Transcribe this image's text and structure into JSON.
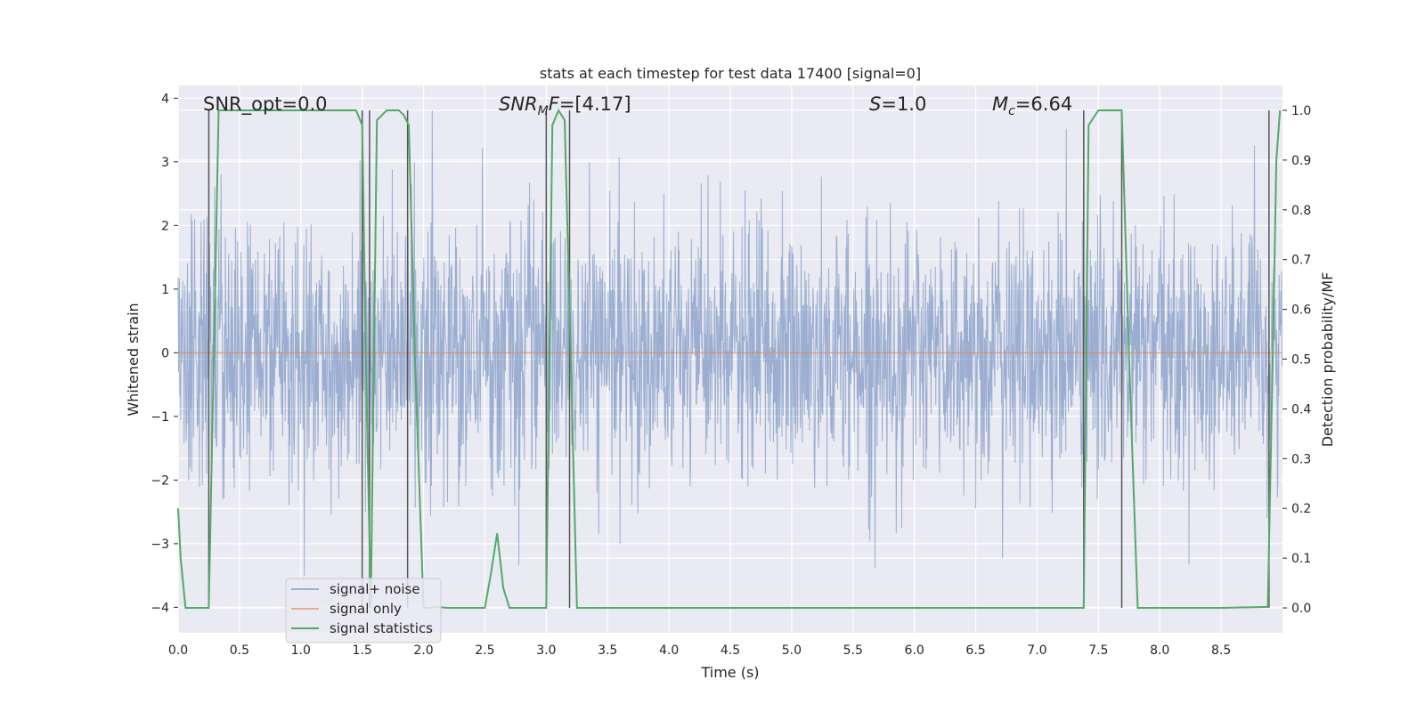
{
  "chart_data": {
    "type": "line",
    "title": "stats at each timestep for test data 17400 [signal=0]",
    "xlabel": "Time (s)",
    "ylabel": "Whitened strain",
    "y2label": "Detection probability/MF",
    "xlim": [
      0.0,
      9.0
    ],
    "ylim": [
      -4.4,
      4.2
    ],
    "y2lim": [
      -0.05,
      1.05
    ],
    "xticks": [
      "0.0",
      "0.5",
      "1.0",
      "1.5",
      "2.0",
      "2.5",
      "3.0",
      "3.5",
      "4.0",
      "4.5",
      "5.0",
      "5.5",
      "6.0",
      "6.5",
      "7.0",
      "7.5",
      "8.0",
      "8.5"
    ],
    "yticks": [
      "4",
      "3",
      "2",
      "1",
      "0",
      "−1",
      "−2",
      "−3",
      "−4"
    ],
    "y2ticks": [
      "1.0",
      "0.9",
      "0.8",
      "0.7",
      "0.6",
      "0.5",
      "0.4",
      "0.3",
      "0.2",
      "0.1",
      "0.0"
    ],
    "grid": true,
    "legend_position": "lower-left",
    "annotations": {
      "snr_opt": "SNR_opt=0.0",
      "snr_mf": "=[4.17]",
      "snr_mf_label": "SNR",
      "snr_mf_sub": "M",
      "snr_mf_f": "F",
      "s_label": "S",
      "s_value": "=1.0",
      "mc_label": "M",
      "mc_sub": "c",
      "mc_value": "=6.64"
    },
    "series": [
      {
        "name": "signal+ noise",
        "color": "#4c72b0",
        "description_kind": "noise",
        "amplitude_sigma": 1.0
      },
      {
        "name": "signal only",
        "color": "#dd8452",
        "values_constant": 0.0
      },
      {
        "name": "signal statistics",
        "color": "#55a868",
        "axis": "right",
        "x": [
          0.0,
          0.02,
          0.06,
          0.15,
          0.25,
          0.29,
          0.33,
          0.4,
          1.0,
          1.45,
          1.5,
          1.53,
          1.57,
          1.62,
          1.7,
          1.8,
          1.84,
          1.88,
          1.93,
          2.0,
          2.05,
          2.1,
          2.2,
          2.5,
          2.55,
          2.6,
          2.65,
          2.7,
          2.75,
          3.0,
          3.05,
          3.1,
          3.15,
          3.2,
          3.25,
          3.3,
          4.0,
          5.0,
          6.0,
          7.0,
          7.38,
          7.42,
          7.5,
          7.6,
          7.69,
          7.75,
          7.82,
          7.9,
          8.0,
          8.5,
          8.88,
          8.92,
          8.95,
          8.98
        ],
        "y": [
          0.2,
          0.1,
          0.0,
          0.0,
          0.0,
          0.5,
          1.0,
          1.0,
          1.0,
          1.0,
          0.97,
          0.5,
          0.0,
          0.98,
          1.0,
          1.0,
          0.99,
          0.97,
          0.5,
          0.0,
          0.0,
          0.002,
          0.0,
          0.0,
          0.07,
          0.15,
          0.04,
          0.0,
          0.0,
          0.0,
          0.97,
          1.0,
          0.98,
          0.5,
          0.0,
          0.0,
          0.0,
          0.0,
          0.0,
          0.0,
          0.0,
          0.97,
          1.0,
          1.0,
          1.0,
          0.5,
          0.0,
          0.0,
          0.0,
          0.0,
          0.002,
          0.5,
          0.9,
          1.0
        ]
      }
    ],
    "vertical_markers": [
      0.25,
      1.5,
      1.56,
      1.87,
      3.0,
      3.19,
      7.38,
      7.69,
      8.89
    ]
  }
}
